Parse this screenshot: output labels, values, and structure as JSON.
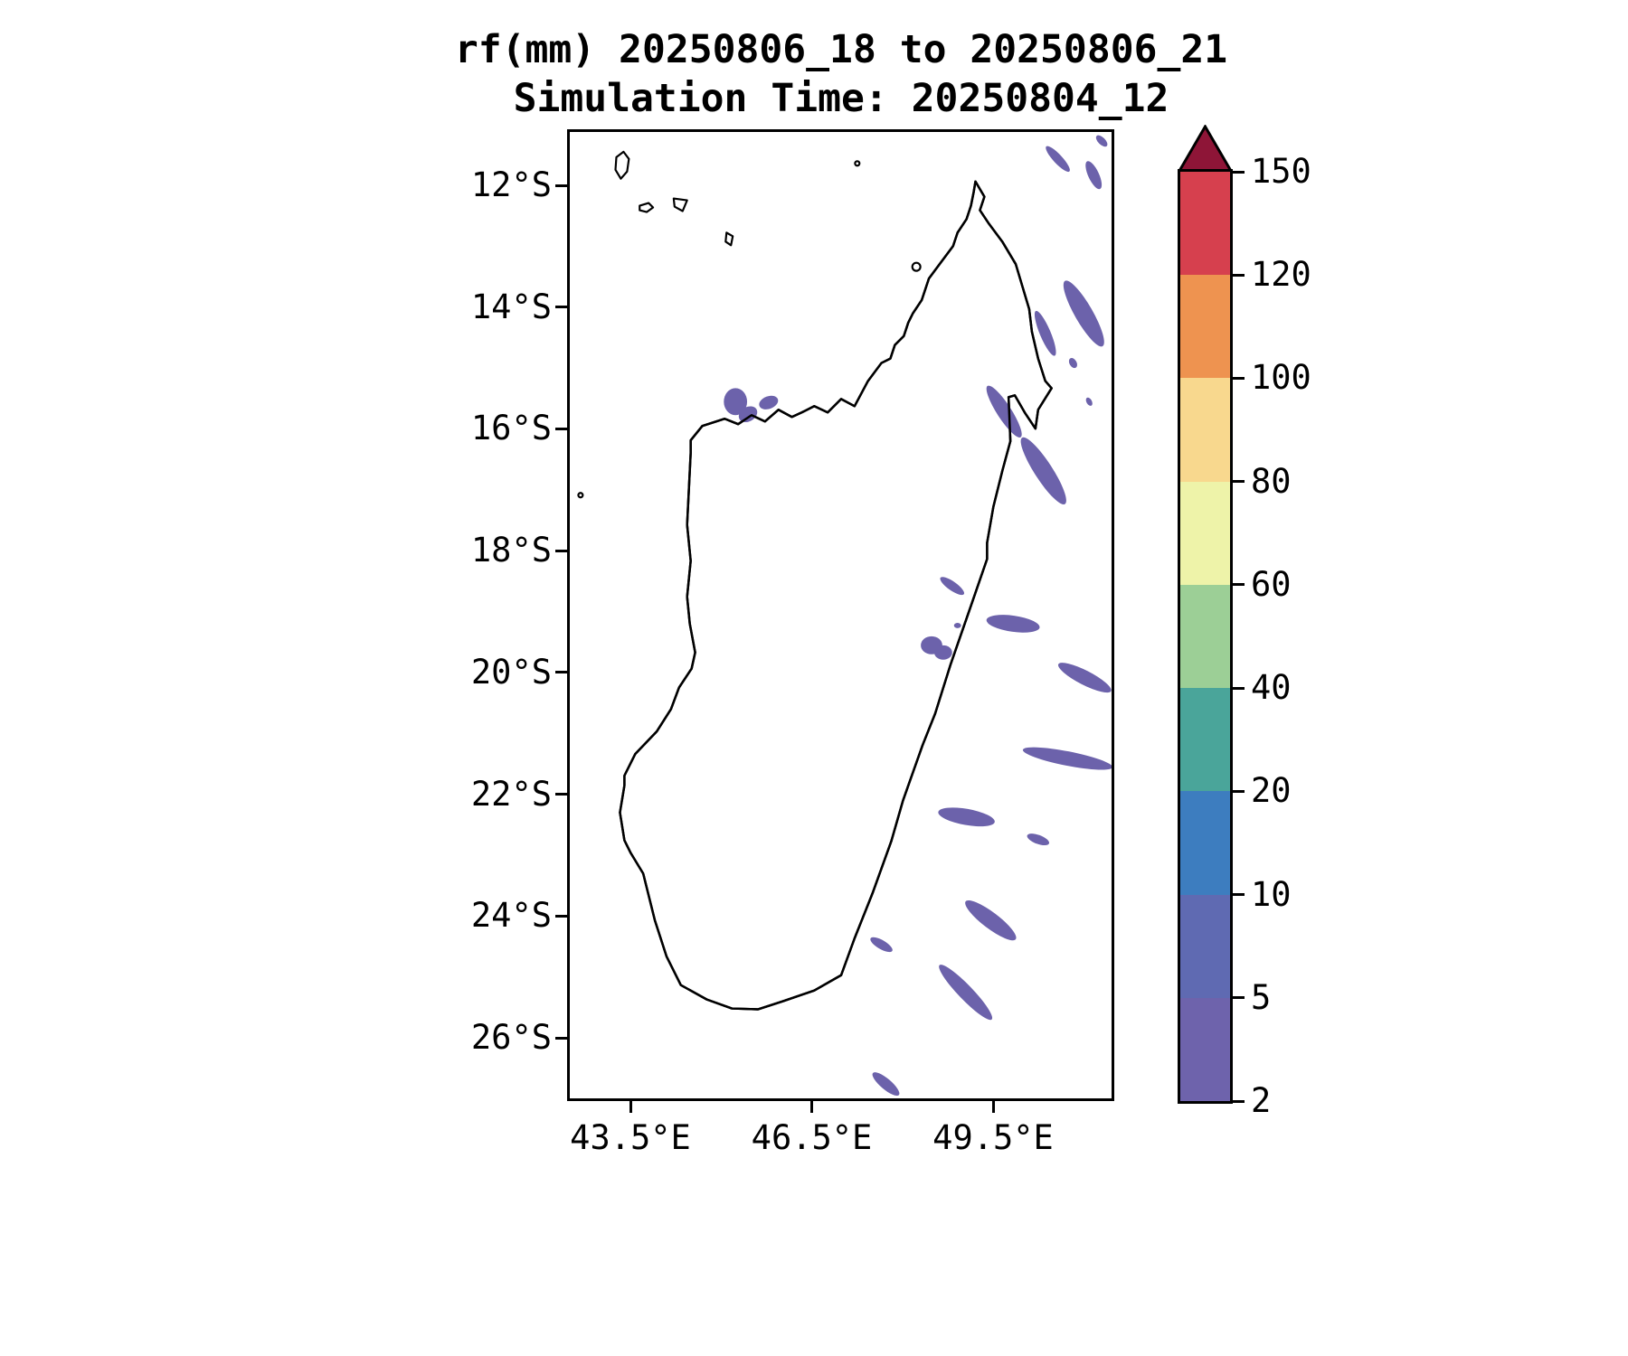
{
  "title": {
    "line1": "rf(mm) 20250806_18 to 20250806_21",
    "line2": "Simulation Time: 20250804_12"
  },
  "axes": {
    "y_tick_labels": [
      "12°S",
      "14°S",
      "16°S",
      "18°S",
      "20°S",
      "22°S",
      "24°S",
      "26°S"
    ],
    "x_tick_labels": [
      "43.5°E",
      "46.5°E",
      "49.5°E"
    ]
  },
  "colorbar": {
    "tick_labels": [
      "150",
      "120",
      "100",
      "80",
      "60",
      "40",
      "20",
      "10",
      "5",
      "2"
    ],
    "levels": [
      2,
      5,
      10,
      20,
      40,
      60,
      80,
      100,
      120,
      150
    ],
    "segment_colors_bottom_to_top": [
      "#6e63ac",
      "#5f6ab2",
      "#3d7dbf",
      "#4aa59a",
      "#9ccf96",
      "#eef3a9",
      "#f8d88e",
      "#ee9350",
      "#d6404e"
    ],
    "arrow_color": "#8e1537",
    "outline_color": "#000000"
  },
  "map": {
    "land_outline_color": "#000000",
    "rain_patch_color": "#6c62ab"
  },
  "chart_data": {
    "type": "heatmap",
    "title": "rf(mm) 20250806_18 to 20250806_21",
    "subtitle": "Simulation Time: 20250804_12",
    "variable": "rf(mm)",
    "valid_period": "20250806_18 to 20250806_21",
    "simulation_time": "20250804_12",
    "x": {
      "tick_labels": [
        "43.5°E",
        "46.5°E",
        "49.5°E"
      ]
    },
    "y": {
      "tick_labels": [
        "12°S",
        "14°S",
        "16°S",
        "18°S",
        "20°S",
        "22°S",
        "24°S",
        "26°S"
      ]
    },
    "colorbar_levels_mm": [
      2,
      5,
      10,
      20,
      40,
      60,
      80,
      100,
      120,
      150
    ],
    "colorbar_extend": "max",
    "legend_position": "right",
    "summary": "Scattered light rainfall (mostly 2-5 mm, locally 5-10 mm) in elongated bands over the ocean east and northeast of Madagascar, with a few patches near the northwest and northeast coasts; no rain over most of the interior.",
    "rain_patches_approx": [
      {
        "lat_S": 11.4,
        "lon_E": 50.7,
        "value_mm": "2-5"
      },
      {
        "lat_S": 11.7,
        "lon_E": 51.2,
        "value_mm": "2-5"
      },
      {
        "lat_S": 14.1,
        "lon_E": 51.0,
        "value_mm": "2-5"
      },
      {
        "lat_S": 14.4,
        "lon_E": 50.4,
        "value_mm": "2-5"
      },
      {
        "lat_S": 15.5,
        "lon_E": 45.2,
        "value_mm": "2-5"
      },
      {
        "lat_S": 16.3,
        "lon_E": 50.1,
        "value_mm": "2-5"
      },
      {
        "lat_S": 18.6,
        "lon_E": 48.8,
        "value_mm": "2-5"
      },
      {
        "lat_S": 19.2,
        "lon_E": 49.9,
        "value_mm": "2-5"
      },
      {
        "lat_S": 19.6,
        "lon_E": 48.6,
        "value_mm": "2-5"
      },
      {
        "lat_S": 20.1,
        "lon_E": 51.1,
        "value_mm": "2-5"
      },
      {
        "lat_S": 21.4,
        "lon_E": 50.8,
        "value_mm": "2-5"
      },
      {
        "lat_S": 22.4,
        "lon_E": 49.1,
        "value_mm": "2-5"
      },
      {
        "lat_S": 22.8,
        "lon_E": 50.3,
        "value_mm": "2-5"
      },
      {
        "lat_S": 24.1,
        "lon_E": 49.5,
        "value_mm": "2-5"
      },
      {
        "lat_S": 24.5,
        "lon_E": 47.7,
        "value_mm": "2-5"
      },
      {
        "lat_S": 25.3,
        "lon_E": 49.1,
        "value_mm": "2-5"
      },
      {
        "lat_S": 26.8,
        "lon_E": 47.7,
        "value_mm": "2-5"
      }
    ]
  }
}
